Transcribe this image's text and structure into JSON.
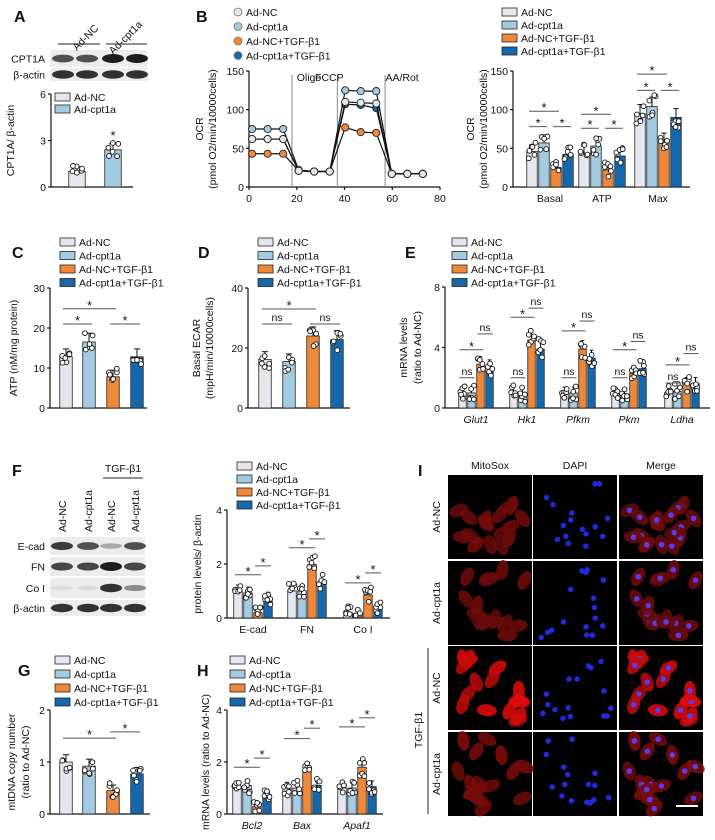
{
  "panels": [
    "A",
    "B",
    "C",
    "D",
    "E",
    "F",
    "G",
    "H",
    "I"
  ],
  "groups": [
    "Ad-NC",
    "Ad-cpt1a",
    "Ad-NC+TGF-β1",
    "Ad-cpt1a+TGF-β1"
  ],
  "colors": {
    "Ad-NC": "#e6e6ef",
    "Ad-cpt1a": "#a3cbe2",
    "Ad-NC+TGF-β1": "#f0883a",
    "Ad-cpt1a+TGF-β1": "#1668ad"
  },
  "blot_A": {
    "lanes": [
      "Ad-NC",
      "Ad-cpt1a"
    ],
    "rows": [
      {
        "name": "CPT1A",
        "bands": [
          0.75,
          0.75,
          1,
          1
        ]
      },
      {
        "name": "β-actin",
        "bands": [
          0.9,
          0.9,
          0.9,
          0.9
        ]
      }
    ]
  },
  "blot_F": {
    "treatment": "TGF-β1",
    "lanes": [
      "Ad-NC",
      "Ad-cpt1a",
      "Ad-NC",
      "Ad-cpt1a"
    ],
    "rows": [
      {
        "name": "E-cad",
        "bands": [
          0.85,
          0.75,
          0.3,
          0.75
        ]
      },
      {
        "name": "FN",
        "bands": [
          0.8,
          0.8,
          1,
          0.8
        ]
      },
      {
        "name": "Co I",
        "bands": [
          0.05,
          0.05,
          0.9,
          0.45
        ]
      },
      {
        "name": "β-actin",
        "bands": [
          0.9,
          0.9,
          0.9,
          0.9
        ]
      }
    ]
  },
  "chart_data": [
    {
      "id": "A",
      "type": "bar",
      "ylabel": [
        "CPT1A/ β-actin"
      ],
      "ylim": [
        0,
        6
      ],
      "yticks": [
        "0",
        "3",
        "6"
      ],
      "categories": [
        ""
      ],
      "series": [
        {
          "name": "Ad-NC",
          "values": [
            1.0
          ]
        },
        {
          "name": "Ad-cpt1a",
          "values": [
            2.4
          ]
        }
      ],
      "sig": [
        {
          "over": [
            0,
            1
          ],
          "y": 3.1,
          "label": "*"
        }
      ]
    },
    {
      "id": "B_line",
      "type": "line",
      "ylabel": [
        "OCR",
        "(pmol O2/min/10000cells)"
      ],
      "xlim": [
        0,
        80
      ],
      "ylim": [
        0,
        150
      ],
      "xticks": [
        "0",
        "20",
        "40",
        "60",
        "80"
      ],
      "yticks": [
        "0",
        "50",
        "100",
        "150"
      ],
      "x": [
        1.3,
        7.8,
        14.3,
        20.8,
        27.3,
        33.8,
        40.3,
        46.8,
        53.3,
        59.8,
        66.3,
        72.8
      ],
      "injections": [
        {
          "x": 18,
          "label": "Oligo"
        },
        {
          "x": 37,
          "label": "FCCP"
        },
        {
          "x": 57,
          "label": "AA/Rot"
        }
      ],
      "series": [
        {
          "name": "Ad-NC+TGF-β1",
          "values": [
            43,
            43,
            43,
            21,
            20,
            20,
            77,
            71,
            70,
            17,
            17,
            17
          ]
        },
        {
          "name": "Ad-cpt1a+TGF-β1",
          "values": [
            62,
            62,
            62,
            21,
            20,
            20,
            107,
            106,
            102,
            17,
            17,
            17
          ]
        },
        {
          "name": "Ad-cpt1a",
          "values": [
            75,
            75,
            75,
            22,
            20,
            20,
            125,
            124,
            124,
            17,
            17,
            17
          ]
        },
        {
          "name": "Ad-NC",
          "values": [
            62,
            62,
            62,
            21,
            20,
            20,
            110,
            109,
            108,
            17,
            17,
            17
          ]
        }
      ],
      "legend_order": [
        "Ad-NC",
        "Ad-cpt1a",
        "Ad-NC+TGF-β1",
        "Ad-cpt1a+TGF-β1"
      ]
    },
    {
      "id": "B_bar",
      "type": "bar",
      "ylabel": [
        "OCR",
        "(pmol O2/min/10000cells)"
      ],
      "ylim": [
        0,
        150
      ],
      "yticks": [
        "0",
        "50",
        "100",
        "150"
      ],
      "categories": [
        "Basal",
        "ATP",
        "Max"
      ],
      "series": [
        {
          "name": "Ad-NC",
          "values": [
            46,
            44,
            95
          ]
        },
        {
          "name": "Ad-cpt1a",
          "values": [
            57,
            53,
            104
          ]
        },
        {
          "name": "Ad-NC+TGF-β1",
          "values": [
            25,
            22,
            60
          ]
        },
        {
          "name": "Ad-cpt1a+TGF-β1",
          "values": [
            42,
            40,
            90
          ]
        }
      ],
      "sig": [
        {
          "a": [
            0,
            0
          ],
          "b": [
            0,
            1
          ],
          "y": 78,
          "label": "*"
        },
        {
          "a": [
            0,
            2
          ],
          "b": [
            0,
            3
          ],
          "y": 78,
          "label": "*"
        },
        {
          "a": [
            0,
            0
          ],
          "b": [
            0,
            2
          ],
          "y": 98,
          "label": "*"
        },
        {
          "a": [
            1,
            0
          ],
          "b": [
            1,
            1
          ],
          "y": 76,
          "label": "*"
        },
        {
          "a": [
            1,
            2
          ],
          "b": [
            1,
            3
          ],
          "y": 76,
          "label": "*"
        },
        {
          "a": [
            1,
            0
          ],
          "b": [
            1,
            2
          ],
          "y": 94,
          "label": "*"
        },
        {
          "a": [
            2,
            0
          ],
          "b": [
            2,
            1
          ],
          "y": 125,
          "label": "*"
        },
        {
          "a": [
            2,
            2
          ],
          "b": [
            2,
            3
          ],
          "y": 125,
          "label": "*"
        },
        {
          "a": [
            2,
            0
          ],
          "b": [
            2,
            2
          ],
          "y": 146,
          "label": "*"
        }
      ]
    },
    {
      "id": "C",
      "type": "bar",
      "ylabel": [
        "ATP (nM/mg protein)"
      ],
      "ylim": [
        0,
        30
      ],
      "yticks": [
        "0",
        "10",
        "20",
        "30"
      ],
      "categories": [
        ""
      ],
      "series": [
        {
          "name": "Ad-NC",
          "values": [
            12.8
          ]
        },
        {
          "name": "Ad-cpt1a",
          "values": [
            16.5
          ]
        },
        {
          "name": "Ad-NC+TGF-β1",
          "values": [
            7.8
          ]
        },
        {
          "name": "Ad-cpt1a+TGF-β1",
          "values": [
            12.8
          ]
        }
      ],
      "sig": [
        {
          "a": [
            0,
            0
          ],
          "b": [
            0,
            1
          ],
          "y": 21,
          "label": "*"
        },
        {
          "a": [
            0,
            2
          ],
          "b": [
            0,
            3
          ],
          "y": 21,
          "label": "*"
        },
        {
          "a": [
            0,
            0
          ],
          "b": [
            0,
            2
          ],
          "y": 24.8,
          "label": "*"
        }
      ]
    },
    {
      "id": "D",
      "type": "bar",
      "ylabel": [
        "Basal ECAR",
        "(mpH/min/10000cells)"
      ],
      "ylim": [
        0,
        40
      ],
      "yticks": [
        "0",
        "20",
        "40"
      ],
      "categories": [
        ""
      ],
      "series": [
        {
          "name": "Ad-NC",
          "values": [
            16.2
          ]
        },
        {
          "name": "Ad-cpt1a",
          "values": [
            15.5
          ]
        },
        {
          "name": "Ad-NC+TGF-β1",
          "values": [
            24
          ]
        },
        {
          "name": "Ad-cpt1a+TGF-β1",
          "values": [
            22.8
          ]
        }
      ],
      "sig": [
        {
          "a": [
            0,
            0
          ],
          "b": [
            0,
            1
          ],
          "y": 28,
          "label": "ns"
        },
        {
          "a": [
            0,
            2
          ],
          "b": [
            0,
            3
          ],
          "y": 28,
          "label": "ns"
        },
        {
          "a": [
            0,
            0
          ],
          "b": [
            0,
            2
          ],
          "y": 33,
          "label": "*"
        }
      ]
    },
    {
      "id": "E",
      "type": "bar",
      "ylabel": [
        "mRNA levels",
        "(ratio to Ad-NC)"
      ],
      "ylim": [
        0,
        8
      ],
      "yticks": [
        "0",
        "4",
        "8"
      ],
      "italic_x": true,
      "categories": [
        "Glut1",
        "Hk1",
        "Pfkm",
        "Pkm",
        "Ldha"
      ],
      "series": [
        {
          "name": "Ad-NC",
          "values": [
            1.0,
            1.0,
            1.0,
            1.0,
            1.0
          ]
        },
        {
          "name": "Ad-cpt1a",
          "values": [
            1.0,
            0.9,
            1.0,
            0.95,
            1.1
          ]
        },
        {
          "name": "Ad-NC+TGF-β1",
          "values": [
            2.9,
            4.5,
            3.9,
            2.3,
            1.6
          ]
        },
        {
          "name": "Ad-cpt1a+TGF-β1",
          "values": [
            2.7,
            3.9,
            3.3,
            2.6,
            1.6
          ]
        }
      ],
      "sig": [
        {
          "a": [
            0,
            0
          ],
          "b": [
            0,
            1
          ],
          "y": 2.0,
          "label": "ns"
        },
        {
          "a": [
            0,
            2
          ],
          "b": [
            0,
            3
          ],
          "y": 4.9,
          "label": "ns"
        },
        {
          "a": [
            0,
            0
          ],
          "b": [
            0,
            2
          ],
          "y": 3.85,
          "label": "*"
        },
        {
          "a": [
            1,
            0
          ],
          "b": [
            1,
            1
          ],
          "y": 2.0,
          "label": "ns"
        },
        {
          "a": [
            1,
            2
          ],
          "b": [
            1,
            3
          ],
          "y": 6.6,
          "label": "ns"
        },
        {
          "a": [
            1,
            0
          ],
          "b": [
            1,
            2
          ],
          "y": 6.0,
          "label": "*"
        },
        {
          "a": [
            2,
            0
          ],
          "b": [
            2,
            1
          ],
          "y": 2.0,
          "label": "ns"
        },
        {
          "a": [
            2,
            2
          ],
          "b": [
            2,
            3
          ],
          "y": 5.75,
          "label": "ns"
        },
        {
          "a": [
            2,
            0
          ],
          "b": [
            2,
            2
          ],
          "y": 5.1,
          "label": "*"
        },
        {
          "a": [
            3,
            0
          ],
          "b": [
            3,
            1
          ],
          "y": 2.0,
          "label": "ns"
        },
        {
          "a": [
            3,
            2
          ],
          "b": [
            3,
            3
          ],
          "y": 4.4,
          "label": "ns"
        },
        {
          "a": [
            3,
            0
          ],
          "b": [
            3,
            2
          ],
          "y": 3.85,
          "label": "*"
        },
        {
          "a": [
            4,
            0
          ],
          "b": [
            4,
            1
          ],
          "y": 1.65,
          "label": "ns"
        },
        {
          "a": [
            4,
            2
          ],
          "b": [
            4,
            3
          ],
          "y": 3.6,
          "label": "ns"
        },
        {
          "a": [
            4,
            0
          ],
          "b": [
            4,
            2
          ],
          "y": 2.85,
          "label": "*"
        }
      ]
    },
    {
      "id": "F",
      "type": "bar",
      "ylabel": [
        "protein levels/ β-actin"
      ],
      "ylim": [
        0,
        4
      ],
      "yticks": [
        "0",
        "2",
        "4"
      ],
      "categories": [
        "E-cad",
        "FN",
        "Co I"
      ],
      "series": [
        {
          "name": "Ad-NC",
          "values": [
            1.0,
            1.0,
            0.2
          ]
        },
        {
          "name": "Ad-cpt1a",
          "values": [
            0.93,
            1.0,
            0.15
          ]
        },
        {
          "name": "Ad-NC+TGF-β1",
          "values": [
            0.2,
            1.98,
            0.85
          ]
        },
        {
          "name": "Ad-cpt1a+TGF-β1",
          "values": [
            0.75,
            1.35,
            0.38
          ]
        }
      ],
      "sig": [
        {
          "a": [
            0,
            0
          ],
          "b": [
            0,
            2
          ],
          "y": 1.6,
          "label": "*"
        },
        {
          "a": [
            0,
            2
          ],
          "b": [
            0,
            3
          ],
          "y": 1.93,
          "label": "*"
        },
        {
          "a": [
            1,
            0
          ],
          "b": [
            1,
            2
          ],
          "y": 2.6,
          "label": "*"
        },
        {
          "a": [
            1,
            2
          ],
          "b": [
            1,
            3
          ],
          "y": 2.93,
          "label": "*"
        },
        {
          "a": [
            2,
            0
          ],
          "b": [
            2,
            2
          ],
          "y": 1.3,
          "label": "*"
        },
        {
          "a": [
            2,
            2
          ],
          "b": [
            2,
            3
          ],
          "y": 1.67,
          "label": "*"
        }
      ]
    },
    {
      "id": "G",
      "type": "bar",
      "ylabel": [
        "mtDNA copy number",
        "(ratio to Ad-NC)"
      ],
      "ylim": [
        0,
        2
      ],
      "yticks": [
        "0",
        "1",
        "2"
      ],
      "categories": [
        ""
      ],
      "series": [
        {
          "name": "Ad-NC",
          "values": [
            1.0
          ]
        },
        {
          "name": "Ad-cpt1a",
          "values": [
            0.92
          ]
        },
        {
          "name": "Ad-NC+TGF-β1",
          "values": [
            0.45
          ]
        },
        {
          "name": "Ad-cpt1a+TGF-β1",
          "values": [
            0.77
          ]
        }
      ],
      "sig": [
        {
          "a": [
            0,
            0
          ],
          "b": [
            0,
            2
          ],
          "y": 1.46,
          "label": "*"
        },
        {
          "a": [
            0,
            2
          ],
          "b": [
            0,
            3
          ],
          "y": 1.58,
          "label": "*"
        }
      ]
    },
    {
      "id": "H",
      "type": "bar",
      "ylabel": [
        "mRNA levels (ratio to Ad-NC)"
      ],
      "ylim": [
        0,
        4
      ],
      "yticks": [
        "0",
        "2",
        "4"
      ],
      "italic_x": true,
      "categories": [
        "Bcl2",
        "Bax",
        "Apaf1"
      ],
      "series": [
        {
          "name": "Ad-NC",
          "values": [
            1.0,
            1.0,
            1.0
          ]
        },
        {
          "name": "Ad-cpt1a",
          "values": [
            1.1,
            1.0,
            1.0
          ]
        },
        {
          "name": "Ad-NC+TGF-β1",
          "values": [
            0.3,
            1.65,
            1.8
          ]
        },
        {
          "name": "Ad-cpt1a+TGF-β1",
          "values": [
            0.75,
            1.1,
            1.05
          ]
        }
      ],
      "sig": [
        {
          "a": [
            0,
            0
          ],
          "b": [
            0,
            2
          ],
          "y": 1.8,
          "label": "*"
        },
        {
          "a": [
            0,
            2
          ],
          "b": [
            0,
            3
          ],
          "y": 2.15,
          "label": "*"
        },
        {
          "a": [
            1,
            0
          ],
          "b": [
            1,
            2
          ],
          "y": 2.9,
          "label": "*"
        },
        {
          "a": [
            1,
            2
          ],
          "b": [
            1,
            3
          ],
          "y": 3.3,
          "label": "*"
        },
        {
          "a": [
            2,
            0
          ],
          "b": [
            2,
            2
          ],
          "y": 3.35,
          "label": "*"
        },
        {
          "a": [
            2,
            2
          ],
          "b": [
            2,
            3
          ],
          "y": 3.7,
          "label": "*"
        }
      ]
    }
  ],
  "microscopy": {
    "channels": [
      {
        "name": "MitoSox",
        "color": "#d0202a"
      },
      {
        "name": "DAPI",
        "color": "#2a35c8"
      },
      {
        "name": "Merge",
        "color": "#111111"
      }
    ],
    "rows": [
      {
        "label": "Ad-NC",
        "mitosox_level": 0.35
      },
      {
        "label": "Ad-cpt1a",
        "mitosox_level": 0.3
      },
      {
        "label": "Ad-NC",
        "mitosox_level": 0.9
      },
      {
        "label": "Ad-cpt1a",
        "mitosox_level": 0.4
      }
    ],
    "treatment": "TGF-β1"
  }
}
